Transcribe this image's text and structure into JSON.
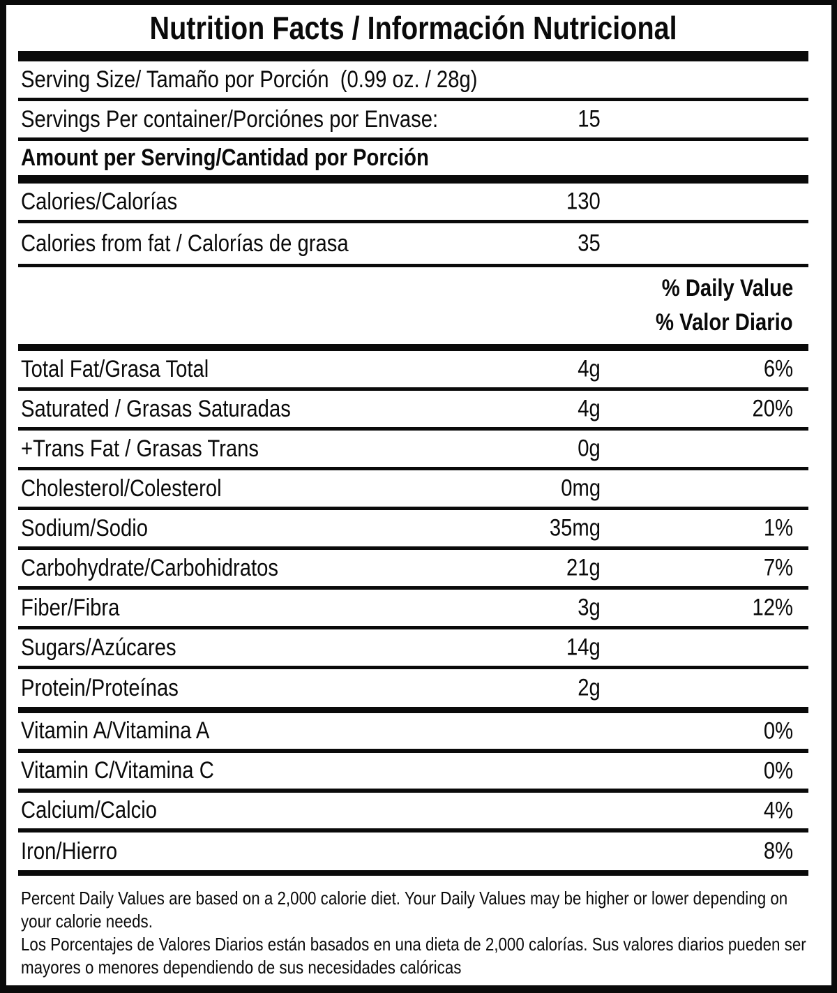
{
  "colors": {
    "ink": "#0a0a0a",
    "background": "#ffffff"
  },
  "header": {
    "title": "Nutrition Facts / Información Nutricional"
  },
  "serving_info": {
    "serving_size": "Serving Size/ Tamaño por Porción  (0.99 oz. / 28g)",
    "servings_per_container_label": "Servings Per container/Porciónes por Envase:",
    "servings_per_container_value": "15",
    "amount_per_serving_header": "Amount per Serving/Cantidad por Porción",
    "calories_label": "Calories/Calorías",
    "calories_value": "130",
    "calories_from_fat_label": "Calories from fat / Calorías de grasa",
    "calories_from_fat_value": "35"
  },
  "daily_value_header": {
    "en": "% Daily Value",
    "es": "% Valor Diario"
  },
  "nutrients": [
    {
      "label": "Total Fat/Grasa Total",
      "amount": "4g",
      "percent": "6%"
    },
    {
      "label": "Saturated / Grasas Saturadas",
      "amount": "4g",
      "percent": "20%"
    },
    {
      "label": "+Trans Fat / Grasas Trans",
      "amount": "0g",
      "percent": ""
    },
    {
      "label": "Cholesterol/Colesterol",
      "amount": "0mg",
      "percent": ""
    },
    {
      "label": "Sodium/Sodio",
      "amount": "35mg",
      "percent": "1%"
    },
    {
      "label": "Carbohydrate/Carbohidratos",
      "amount": "21g",
      "percent": "7%"
    },
    {
      "label": "Fiber/Fibra",
      "amount": "3g",
      "percent": "12%"
    },
    {
      "label": "Sugars/Azúcares",
      "amount": "14g",
      "percent": ""
    },
    {
      "label": "Protein/Proteínas",
      "amount": "2g",
      "percent": ""
    }
  ],
  "vitamins": [
    {
      "label": "Vitamin A/Vitamina A",
      "percent": "0%"
    },
    {
      "label": "Vitamin C/Vitamina C",
      "percent": "0%"
    },
    {
      "label": "Calcium/Calcio",
      "percent": "4%"
    },
    {
      "label": "Iron/Hierro",
      "percent": "8%"
    }
  ],
  "footnotes": {
    "en": "Percent Daily Values are based on a 2,000 calorie diet. Your Daily Values may be higher or lower depending on your calorie needs.",
    "es": "Los Porcentajes de Valores Diarios están basados en una dieta de 2,000 calorías. Sus valores diarios pueden ser mayores o menores dependiendo de sus necesidades calóricas"
  }
}
